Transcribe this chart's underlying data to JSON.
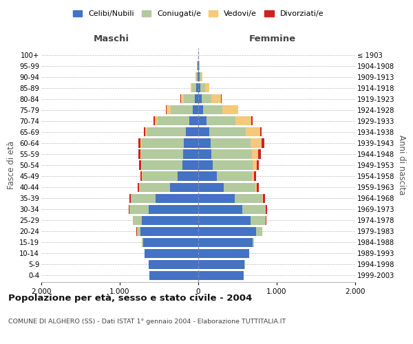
{
  "age_groups": [
    "0-4",
    "5-9",
    "10-14",
    "15-19",
    "20-24",
    "25-29",
    "30-34",
    "35-39",
    "40-44",
    "45-49",
    "50-54",
    "55-59",
    "60-64",
    "65-69",
    "70-74",
    "75-79",
    "80-84",
    "85-89",
    "90-94",
    "95-99",
    "100+"
  ],
  "birth_years": [
    "1999-2003",
    "1994-1998",
    "1989-1993",
    "1984-1988",
    "1979-1983",
    "1974-1978",
    "1969-1973",
    "1964-1968",
    "1959-1963",
    "1954-1958",
    "1949-1953",
    "1944-1948",
    "1939-1943",
    "1934-1938",
    "1929-1933",
    "1924-1928",
    "1919-1923",
    "1914-1918",
    "1909-1913",
    "1904-1908",
    "≤ 1903"
  ],
  "males": {
    "celibi": [
      620,
      630,
      680,
      700,
      740,
      720,
      630,
      540,
      360,
      260,
      200,
      195,
      185,
      155,
      115,
      70,
      40,
      25,
      12,
      5,
      2
    ],
    "coniugati": [
      2,
      3,
      5,
      15,
      45,
      110,
      245,
      320,
      390,
      450,
      520,
      530,
      530,
      490,
      400,
      280,
      140,
      55,
      18,
      7,
      2
    ],
    "vedovi": [
      0,
      0,
      0,
      0,
      0,
      1,
      1,
      2,
      3,
      5,
      8,
      12,
      20,
      30,
      42,
      52,
      42,
      15,
      5,
      2,
      0
    ],
    "divorziati": [
      0,
      0,
      0,
      1,
      2,
      5,
      10,
      15,
      20,
      22,
      25,
      28,
      24,
      18,
      14,
      8,
      4,
      2,
      0,
      0,
      0
    ]
  },
  "females": {
    "nubili": [
      575,
      590,
      648,
      692,
      740,
      670,
      565,
      465,
      325,
      235,
      185,
      170,
      162,
      140,
      105,
      60,
      42,
      26,
      14,
      6,
      2
    ],
    "coniugate": [
      2,
      3,
      5,
      18,
      75,
      190,
      295,
      355,
      405,
      448,
      508,
      510,
      508,
      462,
      372,
      250,
      125,
      58,
      22,
      8,
      2
    ],
    "vedove": [
      0,
      0,
      0,
      0,
      1,
      2,
      4,
      8,
      15,
      28,
      55,
      85,
      140,
      190,
      202,
      195,
      125,
      58,
      18,
      4,
      0
    ],
    "divorziate": [
      0,
      0,
      0,
      1,
      3,
      8,
      15,
      20,
      25,
      25,
      28,
      32,
      28,
      18,
      14,
      8,
      4,
      2,
      1,
      0,
      0
    ]
  },
  "colors": {
    "celibi": "#4472c4",
    "coniugati": "#b3c99e",
    "vedovi": "#f5c97a",
    "divorziati": "#cc2222"
  },
  "title": "Popolazione per età, sesso e stato civile - 2004",
  "subtitle": "COMUNE DI ALGHERO (SS) - Dati ISTAT 1° gennaio 2004 - Elaborazione TUTTITALIA.IT",
  "xlabel_left": "Maschi",
  "xlabel_right": "Femmine",
  "ylabel_left": "Fasce di età",
  "ylabel_right": "Anni di nascita",
  "xlim": 2000,
  "xtick_positions": [
    -2000,
    -1000,
    0,
    1000,
    2000
  ],
  "xtick_labels": [
    "2.000",
    "1.000",
    "0",
    "1.000",
    "2.000"
  ],
  "background_color": "#ffffff",
  "grid_color": "#bbbbbb",
  "maschi_color": "#444444",
  "femmine_color": "#444444"
}
